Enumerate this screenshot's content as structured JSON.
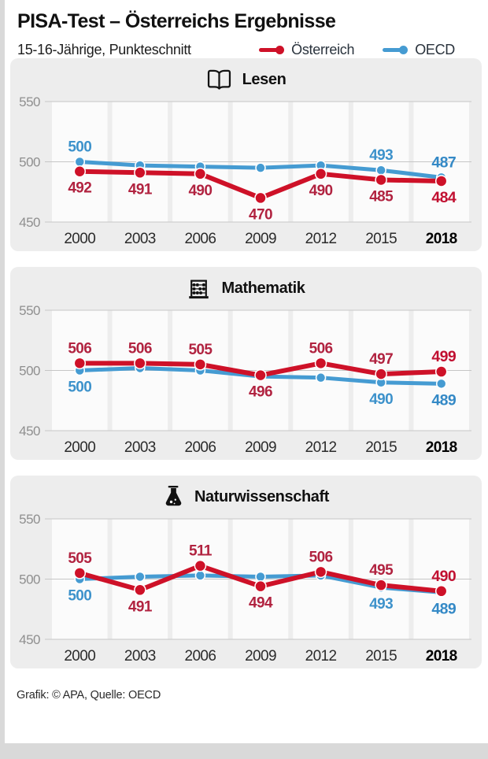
{
  "header": {
    "title": "PISA-Test – Österreichs Ergebnisse",
    "subtitle": "15-16-Jährige, Punkteschnitt",
    "legend": [
      {
        "label": "Österreich",
        "color": "#ce1128"
      },
      {
        "label": "OECD",
        "color": "#459bd2"
      }
    ]
  },
  "colors": {
    "card_bg": "#ededed",
    "band": "#fbfbfb",
    "grid": "#c6c6c6",
    "page_bg": "#d9d9d9",
    "austria_red": "#ce1128",
    "oecd_blue": "#459bd2"
  },
  "chart_data": [
    {
      "type": "line",
      "title": "Lesen",
      "icon": "book-icon",
      "categories": [
        "2000",
        "2003",
        "2006",
        "2009",
        "2012",
        "2015",
        "2018"
      ],
      "ylim": [
        450,
        550
      ],
      "yticks": [
        550,
        500,
        450
      ],
      "grid": true,
      "series": [
        {
          "name": "Österreich",
          "key": "oesterreich",
          "color": "#ce1128",
          "label_color": "#b12340",
          "final_label_color": "#c11031",
          "line_width": 6,
          "dot_radius": 7,
          "values": [
            492,
            491,
            490,
            470,
            490,
            485,
            484
          ],
          "label_pos": [
            "below",
            "below",
            "below",
            "below",
            "below",
            "below",
            "below"
          ]
        },
        {
          "name": "OECD",
          "key": "oecd",
          "color": "#459bd2",
          "label_color": "#3d92cb",
          "final_label_color": "#3489c6",
          "line_width": 5,
          "dot_radius": 6,
          "values": [
            500,
            497,
            496,
            495,
            497,
            493,
            487
          ],
          "label_pos": [
            "above",
            null,
            null,
            null,
            null,
            "above",
            "above"
          ]
        }
      ]
    },
    {
      "type": "line",
      "title": "Mathematik",
      "icon": "abacus-icon",
      "categories": [
        "2000",
        "2003",
        "2006",
        "2009",
        "2012",
        "2015",
        "2018"
      ],
      "ylim": [
        450,
        550
      ],
      "yticks": [
        550,
        500,
        450
      ],
      "grid": true,
      "series": [
        {
          "name": "Österreich",
          "key": "oesterreich",
          "color": "#ce1128",
          "label_color": "#b12340",
          "final_label_color": "#c11031",
          "line_width": 6,
          "dot_radius": 7,
          "values": [
            506,
            506,
            505,
            496,
            506,
            497,
            499
          ],
          "label_pos": [
            "above",
            "above",
            "above",
            "below",
            "above",
            "above",
            "above"
          ]
        },
        {
          "name": "OECD",
          "key": "oecd",
          "color": "#459bd2",
          "label_color": "#3d92cb",
          "final_label_color": "#3489c6",
          "line_width": 5,
          "dot_radius": 6,
          "values": [
            500,
            502,
            500,
            495,
            494,
            490,
            489
          ],
          "label_pos": [
            "below",
            null,
            null,
            null,
            null,
            "below",
            "below"
          ]
        }
      ]
    },
    {
      "type": "line",
      "title": "Naturwissenschaft",
      "icon": "flask-icon",
      "categories": [
        "2000",
        "2003",
        "2006",
        "2009",
        "2012",
        "2015",
        "2018"
      ],
      "ylim": [
        450,
        550
      ],
      "yticks": [
        550,
        500,
        450
      ],
      "grid": true,
      "series": [
        {
          "name": "Österreich",
          "key": "oesterreich",
          "color": "#ce1128",
          "label_color": "#b12340",
          "final_label_color": "#c11031",
          "line_width": 6,
          "dot_radius": 7,
          "values": [
            505,
            491,
            511,
            494,
            506,
            495,
            490
          ],
          "label_pos": [
            "above",
            "below",
            "above",
            "below",
            "above",
            "above",
            "above"
          ]
        },
        {
          "name": "OECD",
          "key": "oecd",
          "color": "#459bd2",
          "label_color": "#3d92cb",
          "final_label_color": "#3489c6",
          "line_width": 5,
          "dot_radius": 6,
          "values": [
            500,
            502,
            503,
            502,
            503,
            493,
            489
          ],
          "label_pos": [
            "below",
            null,
            null,
            null,
            null,
            "below",
            "below"
          ]
        }
      ]
    }
  ],
  "footer": {
    "credit": "Grafik: © APA, Quelle: OECD"
  }
}
